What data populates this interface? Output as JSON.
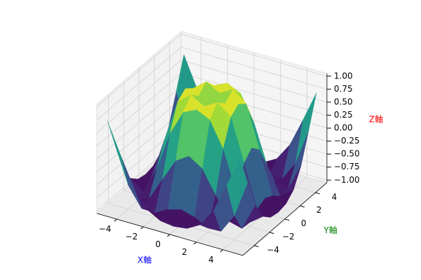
{
  "chart_data": {
    "type": "surface",
    "xlabel": "X軸",
    "ylabel": "Y軸",
    "zlabel": "Z軸",
    "xlabel_color": "#0000ff",
    "ylabel_color": "#008000",
    "zlabel_color": "#ff0000",
    "colormap": "viridis",
    "x": [
      -5,
      -4,
      -3,
      -2,
      -1,
      0,
      1,
      2,
      3,
      4,
      5
    ],
    "y": [
      -5,
      -4,
      -3,
      -2,
      -1,
      0,
      1,
      2,
      3,
      4,
      5
    ],
    "z": [
      [
        0.709,
        0.12,
        -0.437,
        -0.782,
        -0.926,
        -0.959,
        -0.926,
        -0.782,
        -0.437,
        0.12,
        0.709
      ],
      [
        0.12,
        -0.586,
        -0.959,
        -0.971,
        -0.831,
        -0.757,
        -0.831,
        -0.971,
        -0.959,
        -0.586,
        0.12
      ],
      [
        -0.437,
        -0.959,
        -0.892,
        -0.448,
        -0.021,
        0.141,
        -0.021,
        -0.448,
        -0.892,
        -0.959,
        -0.437
      ],
      [
        -0.782,
        -0.971,
        -0.448,
        0.308,
        0.787,
        0.909,
        0.787,
        0.308,
        -0.448,
        -0.971,
        -0.782
      ],
      [
        -0.926,
        -0.831,
        -0.021,
        0.787,
        0.988,
        0.841,
        0.988,
        0.787,
        -0.021,
        -0.831,
        -0.926
      ],
      [
        -0.959,
        -0.757,
        0.141,
        0.909,
        0.841,
        0,
        0.841,
        0.909,
        0.141,
        -0.757,
        -0.959
      ],
      [
        -0.926,
        -0.831,
        -0.021,
        0.787,
        0.988,
        0.841,
        0.988,
        0.787,
        -0.021,
        -0.831,
        -0.926
      ],
      [
        -0.782,
        -0.971,
        -0.448,
        0.308,
        0.787,
        0.909,
        0.787,
        0.308,
        -0.448,
        -0.971,
        -0.782
      ],
      [
        -0.437,
        -0.959,
        -0.892,
        -0.448,
        -0.021,
        0.141,
        -0.021,
        -0.448,
        -0.892,
        -0.959,
        -0.437
      ],
      [
        0.12,
        -0.586,
        -0.959,
        -0.971,
        -0.831,
        -0.757,
        -0.831,
        -0.971,
        -0.959,
        -0.586,
        0.12
      ],
      [
        0.709,
        0.12,
        -0.437,
        -0.782,
        -0.926,
        -0.959,
        -0.926,
        -0.782,
        -0.437,
        0.12,
        0.709
      ]
    ],
    "xlim": [
      -5.5,
      5.5
    ],
    "ylim": [
      -5.5,
      5.5
    ],
    "zlim": [
      -1.05,
      1.05
    ],
    "xticks": [
      {
        "value": -4,
        "label": "−4"
      },
      {
        "value": -2,
        "label": "−2"
      },
      0,
      2,
      4
    ],
    "yticks": [
      {
        "value": -4,
        "label": "−4"
      },
      {
        "value": -2,
        "label": "−2"
      },
      0,
      2,
      4
    ],
    "zticks": [
      {
        "value": -1,
        "label": "−1.00"
      },
      {
        "value": -0.75,
        "label": "−0.75"
      },
      {
        "value": -0.5,
        "label": "−0.50"
      },
      {
        "value": -0.25,
        "label": "−0.25"
      },
      {
        "value": 0,
        "label": "0.00"
      },
      {
        "value": 0.25,
        "label": "0.25"
      },
      {
        "value": 0.5,
        "label": "0.50"
      },
      {
        "value": 0.75,
        "label": "0.75"
      },
      {
        "value": 1,
        "label": "1.00"
      }
    ],
    "grid": true
  }
}
